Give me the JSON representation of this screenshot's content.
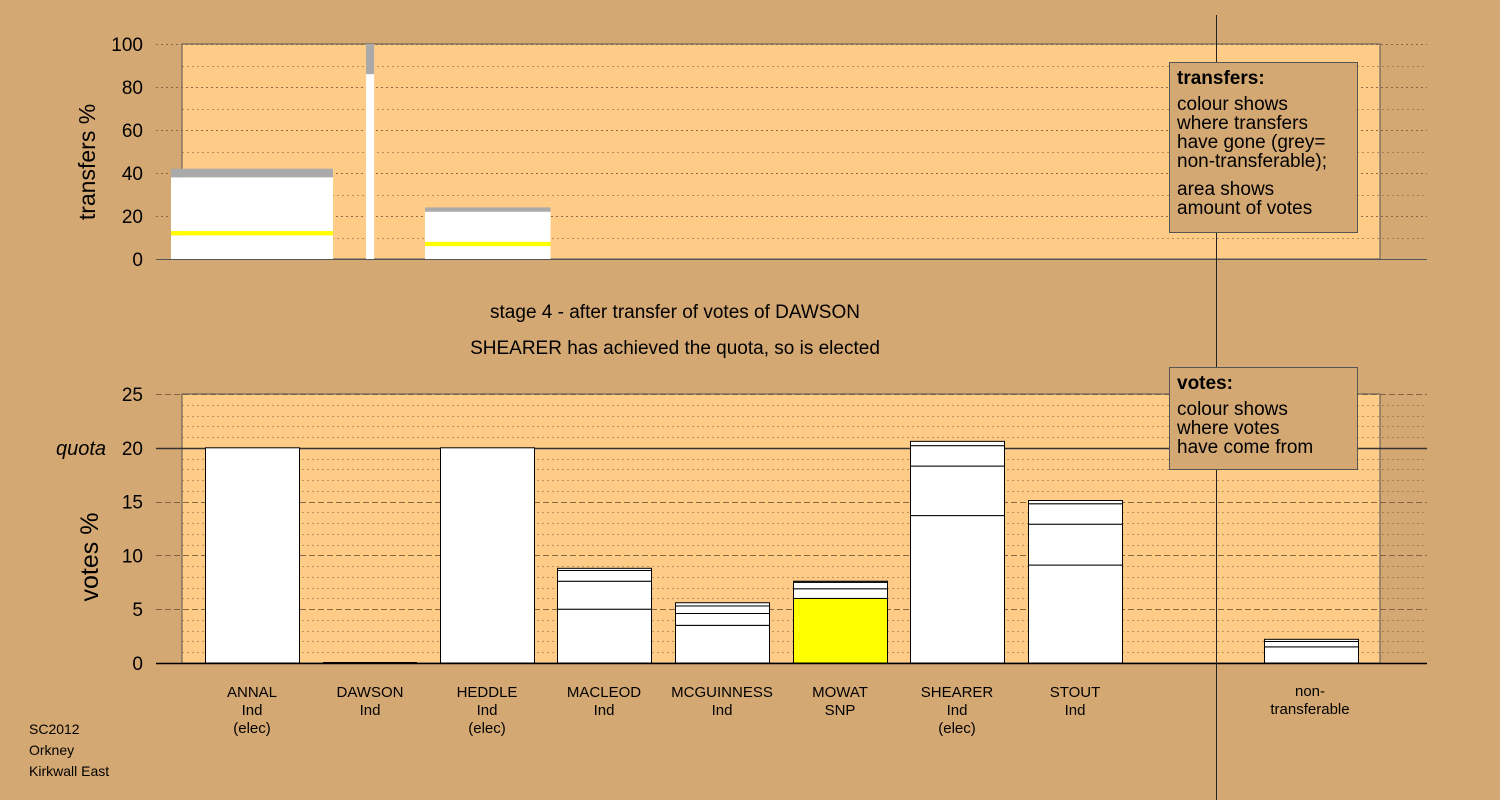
{
  "chart_data": [
    {
      "type": "bar",
      "panel": "transfers",
      "ylabel": "transfers %",
      "ylim": [
        0,
        100
      ],
      "yticks": [
        0,
        20,
        40,
        60,
        80,
        100
      ],
      "bars": [
        {
          "candidate": "ANNAL",
          "width_votes": 20.0,
          "segments": [
            {
              "value": 11,
              "color": "#ffffff"
            },
            {
              "value": 2,
              "color": "#ffff00"
            },
            {
              "value": 25,
              "color": "#ffffff"
            },
            {
              "value": 4,
              "color": "#aaaaaa"
            }
          ]
        },
        {
          "candidate": "DAWSON",
          "width_votes": 1.0,
          "segments": [
            {
              "value": 86,
              "color": "#ffffff"
            },
            {
              "value": 14,
              "color": "#aaaaaa"
            }
          ]
        },
        {
          "candidate": "HEDDLE",
          "width_votes": 15.5,
          "segments": [
            {
              "value": 6,
              "color": "#ffffff"
            },
            {
              "value": 2,
              "color": "#ffff00"
            },
            {
              "value": 14,
              "color": "#ffffff"
            },
            {
              "value": 2,
              "color": "#aaaaaa"
            }
          ]
        }
      ],
      "legend": {
        "title": "transfers:",
        "lines_a": [
          "colour shows",
          "where transfers",
          "have gone (grey=",
          "non-transferable);"
        ],
        "lines_b": [
          "area shows",
          "amount of votes"
        ]
      }
    },
    {
      "type": "bar",
      "panel": "votes",
      "ylabel": "votes %",
      "ylim": [
        0,
        25
      ],
      "yticks": [
        0,
        5,
        10,
        15,
        20,
        25
      ],
      "quota": 20,
      "quota_label": "quota",
      "categories": [
        {
          "name": "ANNAL",
          "party": "Ind",
          "note": "(elec)"
        },
        {
          "name": "DAWSON",
          "party": "Ind",
          "note": ""
        },
        {
          "name": "HEDDLE",
          "party": "Ind",
          "note": "(elec)"
        },
        {
          "name": "MACLEOD",
          "party": "Ind",
          "note": ""
        },
        {
          "name": "MCGUINNESS",
          "party": "Ind",
          "note": ""
        },
        {
          "name": "MOWAT",
          "party": "SNP",
          "note": ""
        },
        {
          "name": "SHEARER",
          "party": "Ind",
          "note": "(elec)"
        },
        {
          "name": "STOUT",
          "party": "Ind",
          "note": ""
        }
      ],
      "stacks": [
        [
          {
            "value": 20.0,
            "color": "#ffffff"
          }
        ],
        [],
        [
          {
            "value": 20.0,
            "color": "#ffffff"
          }
        ],
        [
          {
            "value": 5.0,
            "color": "#ffffff"
          },
          {
            "value": 2.6,
            "color": "#ffffff"
          },
          {
            "value": 1.0,
            "color": "#ffffff"
          },
          {
            "value": 0.2,
            "color": "#ffffff"
          }
        ],
        [
          {
            "value": 3.5,
            "color": "#ffffff"
          },
          {
            "value": 1.1,
            "color": "#ffffff"
          },
          {
            "value": 0.7,
            "color": "#ffffff"
          },
          {
            "value": 0.3,
            "color": "#ffffff"
          }
        ],
        [
          {
            "value": 6.0,
            "color": "#ffff00"
          },
          {
            "value": 0.9,
            "color": "#ffffff"
          },
          {
            "value": 0.6,
            "color": "#ffffff"
          },
          {
            "value": 0.1,
            "color": "#ffffff"
          }
        ],
        [
          {
            "value": 13.7,
            "color": "#ffffff"
          },
          {
            "value": 4.6,
            "color": "#ffffff"
          },
          {
            "value": 1.9,
            "color": "#ffffff"
          },
          {
            "value": 0.4,
            "color": "#ffffff"
          }
        ],
        [
          {
            "value": 9.1,
            "color": "#ffffff"
          },
          {
            "value": 3.8,
            "color": "#ffffff"
          },
          {
            "value": 1.9,
            "color": "#ffffff"
          },
          {
            "value": 0.3,
            "color": "#ffffff"
          }
        ]
      ],
      "nontransferable": {
        "label_lines": [
          "non-",
          "transferable"
        ],
        "stack": [
          {
            "value": 1.5,
            "color": "#ffffff"
          },
          {
            "value": 0.5,
            "color": "#ffffff"
          },
          {
            "value": 0.2,
            "color": "#ffffff"
          }
        ]
      },
      "legend": {
        "title": "votes:",
        "lines_a": [
          "colour shows",
          "where votes",
          "have come from"
        ]
      }
    }
  ],
  "stage_text": "stage 4 - after transfer of votes of DAWSON",
  "elected_text": "SHEARER has achieved the quota, so is elected",
  "footer": [
    "SC2012",
    "Orkney",
    "Kirkwall East"
  ],
  "colors": {
    "background": "#d4a873",
    "plot_area": "#ffcc88",
    "grid": "#7a5c3c",
    "non_transferable": "#aaaaaa",
    "snp": "#ffff00"
  }
}
